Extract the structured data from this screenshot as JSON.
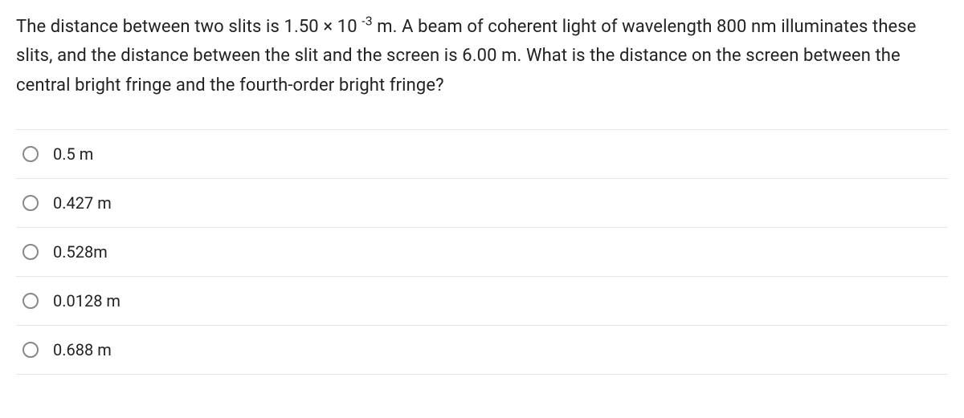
{
  "question": {
    "text_pre": "The distance between two slits is 1.50 ×  10 ",
    "exponent": "-3",
    "text_post": " m. A beam of coherent light of wavelength 800 nm illuminates these slits, and the distance between the slit and the screen is 6.00 m. What is the distance on the screen between the central bright fringe and the fourth-order bright fringe?"
  },
  "options": [
    {
      "label": "0.5 m"
    },
    {
      "label": "0.427 m"
    },
    {
      "label": "0.528m"
    },
    {
      "label": "0.0128 m"
    },
    {
      "label": "0.688 m"
    }
  ],
  "styles": {
    "text_color": "#222222",
    "border_color": "#e5e5e5",
    "radio_border": "#888888",
    "background": "#ffffff",
    "question_fontsize": 22,
    "option_fontsize": 20
  }
}
